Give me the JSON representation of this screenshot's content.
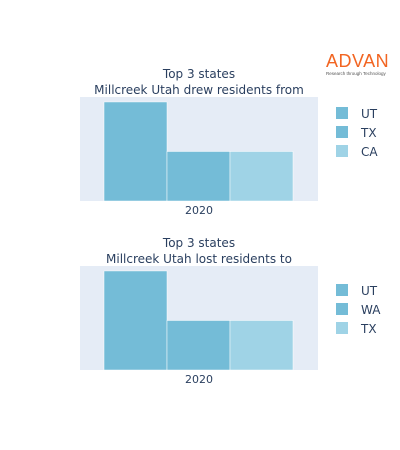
{
  "logo": {
    "word": "ADVAN",
    "tagline": "Research through Technology"
  },
  "colors": {
    "plot_bg": "#e5ecf6",
    "series": [
      "#74bcd7",
      "#74bcd7",
      "#9fd3e6"
    ]
  },
  "chart_data": [
    {
      "type": "bar",
      "title": [
        "Top 3 states",
        "Millcreek Utah drew residents from"
      ],
      "categories": [
        "2020"
      ],
      "series": [
        {
          "name": "UT",
          "values": [
            1.0
          ]
        },
        {
          "name": "TX",
          "values": [
            0.5
          ]
        },
        {
          "name": "CA",
          "values": [
            0.5
          ]
        }
      ],
      "xlabel": "",
      "ylabel": "",
      "ylim": [
        0,
        1.05
      ],
      "yaxis_visible": false,
      "grid": false,
      "legend": "right"
    },
    {
      "type": "bar",
      "title": [
        "Top 3 states",
        "Millcreek Utah lost residents to"
      ],
      "categories": [
        "2020"
      ],
      "series": [
        {
          "name": "UT",
          "values": [
            1.0
          ]
        },
        {
          "name": "WA",
          "values": [
            0.5
          ]
        },
        {
          "name": "TX",
          "values": [
            0.5
          ]
        }
      ],
      "xlabel": "",
      "ylabel": "",
      "ylim": [
        0,
        1.05
      ],
      "yaxis_visible": false,
      "grid": false,
      "legend": "right"
    }
  ]
}
